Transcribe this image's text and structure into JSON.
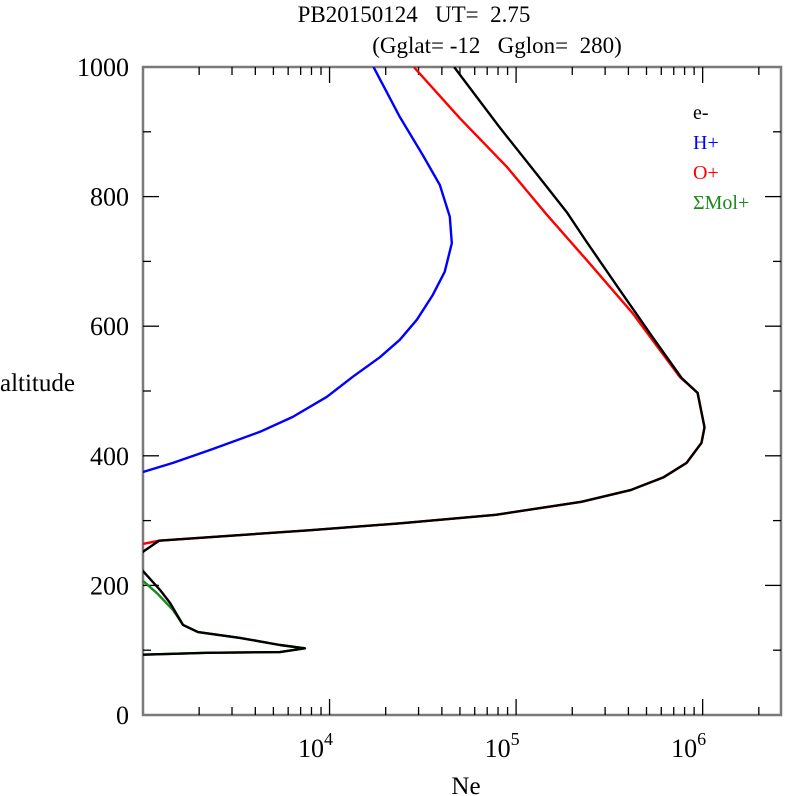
{
  "chart_data": {
    "type": "line",
    "title": "PB20150124   UT=  2.75",
    "subtitle": "(Gglat= -12   Gglon=  280)",
    "xlabel": "Ne",
    "ylabel": "altitude",
    "xscale": "log",
    "xlim": [
      1000,
      2630000
    ],
    "ylim": [
      0,
      1000
    ],
    "grid": false,
    "legend_placement": "top-right",
    "y_ticks": [
      0,
      200,
      400,
      600,
      800,
      1000
    ],
    "y_tick_labels": [
      "0",
      "200",
      "400",
      "600",
      "800",
      "1000"
    ],
    "x_ticks": [
      10000,
      100000,
      1000000
    ],
    "x_tick_labels": [
      {
        "base": "10",
        "exp": "4"
      },
      {
        "base": "10",
        "exp": "5"
      },
      {
        "base": "10",
        "exp": "6"
      }
    ],
    "series": [
      {
        "name": "ΣMol+",
        "label": "ΣMol",
        "sup": "+",
        "color": "#1a8a1a",
        "x": [
          1000,
          1189,
          1448,
          1638,
          1972,
          3310,
          5420,
          7380,
          5420,
          2200,
          1000
        ],
        "y": [
          207,
          188,
          162,
          139,
          128,
          119,
          108,
          103,
          97,
          96,
          93
        ]
      },
      {
        "name": "H+",
        "label": "H",
        "sup": "+",
        "color": "#0000ff",
        "x": [
          1000,
          1448,
          2285,
          4236,
          6353,
          9680,
          13340,
          18600,
          23800,
          29400,
          35700,
          41400,
          45200,
          44100,
          39000,
          31600,
          23800,
          17200
        ],
        "y": [
          375,
          389,
          409,
          437,
          460,
          491,
          522,
          552,
          579,
          610,
          648,
          684,
          728,
          769,
          818,
          864,
          923,
          1000
        ]
      },
      {
        "name": "O+",
        "label": "O",
        "sup": "+",
        "color": "#ff0000",
        "x": [
          28300,
          49900,
          89100,
          146000,
          239000,
          421000,
          752000,
          939000,
          1023000,
          986000,
          820000,
          618000,
          411000,
          224000,
          77800,
          24400,
          7740,
          2430,
          1219,
          1000
        ],
        "y": [
          1000,
          921,
          846,
          772,
          702,
          620,
          522,
          497,
          444,
          420,
          389,
          367,
          347,
          329,
          309,
          296,
          285,
          275,
          269,
          264
        ]
      },
      {
        "name": "e-",
        "label": "e",
        "sup": "-",
        "color": "#000000",
        "x": [
          46500,
          81600,
          139000,
          187000,
          239000,
          359000,
          539000,
          771000,
          939000,
          1023000,
          986000,
          820000,
          618000,
          411000,
          224000,
          77800,
          24400,
          7740,
          2430,
          1219,
          1000,
          900,
          1000,
          1233,
          1395,
          1638,
          1972,
          3310,
          5420,
          7380,
          5420,
          2200,
          1000
        ],
        "y": [
          1000,
          907,
          823,
          776,
          730,
          656,
          583,
          520,
          497,
          444,
          420,
          389,
          367,
          347,
          329,
          309,
          296,
          285,
          275,
          269,
          252,
          237,
          222,
          193,
          173,
          139,
          128,
          119,
          108,
          103,
          97,
          96,
          93
        ]
      }
    ],
    "legend_order": [
      "e-",
      "H+",
      "O+",
      "ΣMol+"
    ]
  }
}
